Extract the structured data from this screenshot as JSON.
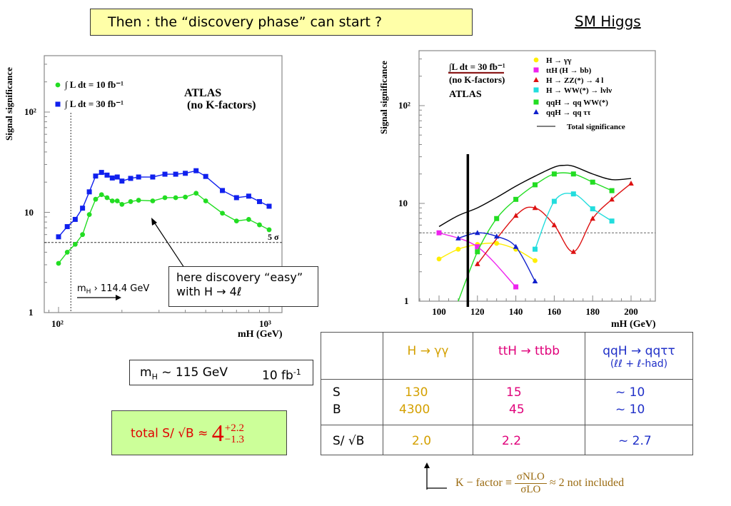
{
  "header": {
    "title": "Then :  the “discovery phase” can start ?",
    "topic": "SM Higgs"
  },
  "annotations": {
    "easy_line1": "here discovery “easy”",
    "easy_line2": "with H → 4ℓ",
    "mh_box_mass": "m",
    "mh_box_sub": "H",
    "mh_box_rest": " ~ 115 GeV",
    "mh_box_lumi": "10 fb",
    "mh_box_lumi_sup": "-1",
    "total_label": "total   S/ √B ≈ ",
    "total_value": "4",
    "total_err_plus": "+2.2",
    "total_err_minus": "−1.3",
    "kfactor_prefix": "K − factor ≡",
    "kfactor_num": "σNLO",
    "kfactor_den": "σLO",
    "kfactor_suffix": "≈ 2   not included",
    "left_mh_cut": "m",
    "left_mh_cut_sub": "H",
    "left_mh_cut_rest": " › 114.4 GeV",
    "left_five_sigma": "5 σ"
  },
  "table": {
    "headers": [
      "",
      "H → γγ",
      "ttH → ttbb",
      "qqH → qqττ"
    ],
    "header_note": "(ℓℓ + ℓ-had)",
    "row_labels": [
      "S",
      "B",
      "S/ √B"
    ],
    "rows": {
      "S": [
        "130",
        "15",
        "~ 10"
      ],
      "B": [
        "4300",
        "45",
        "~ 10"
      ],
      "SsqrtB": [
        "2.0",
        "2.2",
        "~ 2.7"
      ]
    },
    "colors": {
      "gg": "#d4a000",
      "tth": "#e0007a",
      "qq": "#2030c8"
    }
  },
  "chart_data": [
    {
      "type": "line",
      "title": "",
      "xlabel": "mH (GeV)",
      "ylabel": "Signal significance",
      "xscale": "log",
      "yscale": "log",
      "xlim": [
        88,
        1100
      ],
      "ylim": [
        1,
        300
      ],
      "xticks": [
        "10²",
        "10³"
      ],
      "yticks": [
        "1",
        "10",
        "10²"
      ],
      "annotation_title": "ATLAS",
      "annotation_sub": "(no K-factors)",
      "threshold_line": {
        "y": 5,
        "label": "5 σ"
      },
      "vertical_line": {
        "x": 114.4
      },
      "x": [
        100,
        110,
        120,
        130,
        140,
        150,
        160,
        170,
        180,
        190,
        200,
        220,
        240,
        280,
        320,
        360,
        400,
        450,
        500,
        600,
        700,
        800,
        900,
        1000
      ],
      "series": [
        {
          "name": "∫ L dt = 10 fb⁻¹",
          "color": "#22dd22",
          "marker": "circle",
          "values": [
            3.1,
            4.0,
            4.8,
            6.0,
            9.5,
            13.5,
            15.0,
            14.0,
            13.0,
            13.0,
            12.0,
            12.8,
            13.2,
            13.0,
            14.0,
            14.0,
            14.2,
            15.5,
            13.0,
            9.8,
            8.2,
            8.5,
            7.5,
            6.7
          ]
        },
        {
          "name": "∫ L dt = 30 fb⁻¹",
          "color": "#1020ee",
          "marker": "square",
          "values": [
            5.7,
            7.2,
            8.5,
            11.0,
            16.0,
            23.0,
            25.0,
            23.5,
            22.0,
            22.5,
            20.5,
            21.8,
            22.5,
            22.5,
            24.0,
            24.0,
            24.5,
            26.0,
            22.8,
            16.5,
            14.0,
            14.5,
            12.8,
            11.5
          ]
        }
      ]
    },
    {
      "type": "line",
      "title": "",
      "xlabel": "mH (GeV)",
      "ylabel": "Signal significance",
      "xscale": "linear",
      "yscale": "log",
      "xlim": [
        90,
        210
      ],
      "ylim": [
        1,
        300
      ],
      "xticks": [
        "100",
        "120",
        "140",
        "160",
        "180",
        "200"
      ],
      "yticks": [
        "1",
        "10",
        "10²"
      ],
      "annotation_lumi": "∫L dt = 30 fb⁻¹",
      "annotation_sub": "(no K-factors)",
      "annotation_title": "ATLAS",
      "threshold_line": {
        "y": 5
      },
      "vertical_line": {
        "x": 115
      },
      "series": [
        {
          "name": "H → γγ",
          "color": "#ffee00",
          "marker": "circle",
          "x": [
            100,
            110,
            120,
            130,
            140,
            150
          ],
          "values": [
            2.7,
            3.4,
            3.8,
            3.9,
            3.4,
            2.6
          ]
        },
        {
          "name": "ttH (H → bb)",
          "color": "#ee22ee",
          "marker": "square",
          "x": [
            100,
            120,
            140
          ],
          "values": [
            5.0,
            3.6,
            1.4
          ]
        },
        {
          "name": "H → ZZ(*) → 4 l",
          "color": "#dd1111",
          "marker": "triangle",
          "x": [
            120,
            140,
            150,
            160,
            170,
            180,
            190,
            200
          ],
          "values": [
            2.4,
            7.5,
            9.0,
            6.0,
            3.2,
            7.0,
            11.0,
            16.0
          ]
        },
        {
          "name": "H → WW(*) → lνlν",
          "color": "#22dddd",
          "marker": "square",
          "x": [
            150,
            160,
            170,
            180,
            190
          ],
          "values": [
            3.4,
            10.5,
            12.5,
            8.8,
            6.6
          ]
        },
        {
          "name": "qqH → qq WW(*)",
          "color": "#22dd22",
          "marker": "square",
          "x": [
            110,
            120,
            130,
            140,
            150,
            160,
            170,
            180,
            190
          ],
          "values": [
            1.0,
            3.2,
            7.0,
            11.0,
            15.5,
            20.0,
            20.0,
            16.5,
            13.5
          ]
        },
        {
          "name": "qqH → qq ττ",
          "color": "#1020cc",
          "marker": "triangle",
          "x": [
            110,
            120,
            130,
            140,
            150
          ],
          "values": [
            4.4,
            5.0,
            4.6,
            3.6,
            1.6
          ]
        },
        {
          "name": "Total significance",
          "color": "#000000",
          "marker": "none",
          "x": [
            100,
            110,
            120,
            130,
            140,
            150,
            160,
            165,
            170,
            180,
            190,
            200
          ],
          "values": [
            5.8,
            7.5,
            9.0,
            11.5,
            15.0,
            19.0,
            23.5,
            24.5,
            24.0,
            20.0,
            17.5,
            18.0
          ]
        }
      ]
    }
  ]
}
